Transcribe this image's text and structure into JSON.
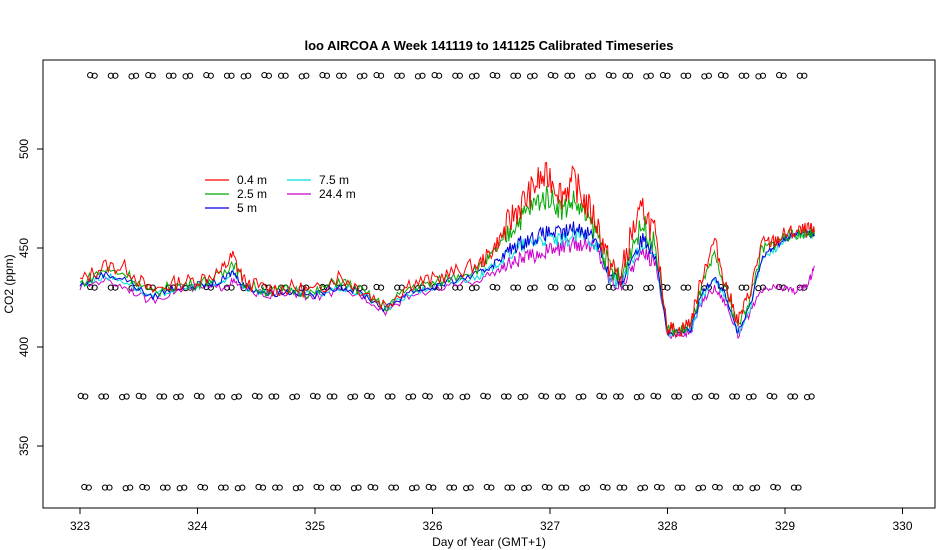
{
  "chart_data": {
    "type": "line",
    "title": "loo AIRCOA A  Week 141119 to 141125  Calibrated Timeseries",
    "xlabel": "Day of Year (GMT+1)",
    "ylabel": "CO2 (ppm)",
    "xlim": [
      323,
      330
    ],
    "ylim": [
      320,
      545
    ],
    "x_ticks": [
      323,
      324,
      325,
      326,
      327,
      328,
      329,
      330
    ],
    "y_ticks": [
      350,
      400,
      450,
      500
    ],
    "grid": false,
    "legend_position": "top-left",
    "series": [
      {
        "name": "0.4 m",
        "color": "#ff0000",
        "points": [
          [
            323.0,
            433
          ],
          [
            323.2,
            441
          ],
          [
            323.4,
            440
          ],
          [
            323.6,
            428
          ],
          [
            323.8,
            432
          ],
          [
            324.0,
            434
          ],
          [
            324.2,
            438
          ],
          [
            324.3,
            446
          ],
          [
            324.4,
            433
          ],
          [
            324.6,
            429
          ],
          [
            324.8,
            430
          ],
          [
            325.0,
            428
          ],
          [
            325.2,
            436
          ],
          [
            325.4,
            429
          ],
          [
            325.6,
            421
          ],
          [
            325.8,
            432
          ],
          [
            326.0,
            434
          ],
          [
            326.2,
            438
          ],
          [
            326.4,
            442
          ],
          [
            326.5,
            448
          ],
          [
            326.6,
            457
          ],
          [
            326.7,
            468
          ],
          [
            326.8,
            475
          ],
          [
            326.9,
            484
          ],
          [
            327.0,
            486
          ],
          [
            327.1,
            477
          ],
          [
            327.2,
            484
          ],
          [
            327.3,
            473
          ],
          [
            327.4,
            463
          ],
          [
            327.5,
            442
          ],
          [
            327.6,
            435
          ],
          [
            327.7,
            458
          ],
          [
            327.8,
            470
          ],
          [
            327.9,
            455
          ],
          [
            328.0,
            410
          ],
          [
            328.1,
            408
          ],
          [
            328.2,
            413
          ],
          [
            328.3,
            437
          ],
          [
            328.4,
            454
          ],
          [
            328.5,
            430
          ],
          [
            328.6,
            413
          ],
          [
            328.7,
            427
          ],
          [
            328.8,
            452
          ],
          [
            328.9,
            453
          ],
          [
            329.0,
            457
          ],
          [
            329.1,
            458
          ],
          [
            329.2,
            459
          ],
          [
            329.25,
            458
          ]
        ]
      },
      {
        "name": "2.5 m",
        "color": "#00aa00",
        "points": [
          [
            323.0,
            432
          ],
          [
            323.2,
            439
          ],
          [
            323.4,
            437
          ],
          [
            323.6,
            427
          ],
          [
            323.8,
            431
          ],
          [
            324.0,
            432
          ],
          [
            324.2,
            436
          ],
          [
            324.3,
            443
          ],
          [
            324.4,
            432
          ],
          [
            324.6,
            428
          ],
          [
            324.8,
            429
          ],
          [
            325.0,
            427
          ],
          [
            325.2,
            434
          ],
          [
            325.4,
            428
          ],
          [
            325.6,
            420
          ],
          [
            325.8,
            430
          ],
          [
            326.0,
            432
          ],
          [
            326.2,
            436
          ],
          [
            326.4,
            440
          ],
          [
            326.5,
            446
          ],
          [
            326.6,
            453
          ],
          [
            326.7,
            462
          ],
          [
            326.8,
            468
          ],
          [
            326.9,
            474
          ],
          [
            327.0,
            476
          ],
          [
            327.1,
            469
          ],
          [
            327.2,
            474
          ],
          [
            327.3,
            466
          ],
          [
            327.4,
            458
          ],
          [
            327.5,
            440
          ],
          [
            327.6,
            434
          ],
          [
            327.7,
            452
          ],
          [
            327.8,
            462
          ],
          [
            327.9,
            450
          ],
          [
            328.0,
            409
          ],
          [
            328.1,
            408
          ],
          [
            328.2,
            411
          ],
          [
            328.3,
            432
          ],
          [
            328.4,
            446
          ],
          [
            328.5,
            428
          ],
          [
            328.6,
            411
          ],
          [
            328.7,
            424
          ],
          [
            328.8,
            449
          ],
          [
            328.9,
            452
          ],
          [
            329.0,
            456
          ],
          [
            329.1,
            457
          ],
          [
            329.2,
            458
          ],
          [
            329.25,
            457
          ]
        ]
      },
      {
        "name": "5 m",
        "color": "#0000dd",
        "points": [
          [
            323.0,
            431
          ],
          [
            323.2,
            437
          ],
          [
            323.4,
            434
          ],
          [
            323.6,
            425
          ],
          [
            323.8,
            430
          ],
          [
            324.0,
            431
          ],
          [
            324.2,
            433
          ],
          [
            324.3,
            438
          ],
          [
            324.4,
            431
          ],
          [
            324.6,
            427
          ],
          [
            324.8,
            428
          ],
          [
            325.0,
            426
          ],
          [
            325.2,
            431
          ],
          [
            325.4,
            427
          ],
          [
            325.6,
            419
          ],
          [
            325.8,
            428
          ],
          [
            326.0,
            430
          ],
          [
            326.2,
            434
          ],
          [
            326.4,
            437
          ],
          [
            326.5,
            441
          ],
          [
            326.6,
            446
          ],
          [
            326.7,
            451
          ],
          [
            326.8,
            454
          ],
          [
            326.9,
            456
          ],
          [
            327.0,
            458
          ],
          [
            327.1,
            457
          ],
          [
            327.2,
            460
          ],
          [
            327.3,
            459
          ],
          [
            327.4,
            454
          ],
          [
            327.5,
            437
          ],
          [
            327.6,
            432
          ],
          [
            327.7,
            446
          ],
          [
            327.8,
            455
          ],
          [
            327.9,
            447
          ],
          [
            328.0,
            407
          ],
          [
            328.1,
            407
          ],
          [
            328.2,
            409
          ],
          [
            328.3,
            428
          ],
          [
            328.4,
            436
          ],
          [
            328.5,
            425
          ],
          [
            328.6,
            407
          ],
          [
            328.7,
            420
          ],
          [
            328.8,
            445
          ],
          [
            328.9,
            450
          ],
          [
            329.0,
            455
          ],
          [
            329.1,
            457
          ],
          [
            329.2,
            458
          ],
          [
            329.25,
            456
          ]
        ]
      },
      {
        "name": "7.5 m",
        "color": "#00dddd",
        "points": [
          [
            323.0,
            431
          ],
          [
            323.2,
            436
          ],
          [
            323.4,
            433
          ],
          [
            323.6,
            425
          ],
          [
            323.8,
            429
          ],
          [
            324.0,
            431
          ],
          [
            324.2,
            432
          ],
          [
            324.3,
            437
          ],
          [
            324.4,
            430
          ],
          [
            324.6,
            427
          ],
          [
            324.8,
            428
          ],
          [
            325.0,
            426
          ],
          [
            325.2,
            430
          ],
          [
            325.4,
            427
          ],
          [
            325.6,
            419
          ],
          [
            325.8,
            427
          ],
          [
            326.0,
            430
          ],
          [
            326.2,
            433
          ],
          [
            326.4,
            436
          ],
          [
            326.5,
            440
          ],
          [
            326.6,
            444
          ],
          [
            326.7,
            449
          ],
          [
            326.8,
            452
          ],
          [
            326.9,
            454
          ],
          [
            327.0,
            455
          ],
          [
            327.1,
            453
          ],
          [
            327.2,
            456
          ],
          [
            327.3,
            456
          ],
          [
            327.4,
            452
          ],
          [
            327.5,
            436
          ],
          [
            327.6,
            432
          ],
          [
            327.7,
            444
          ],
          [
            327.8,
            451
          ],
          [
            327.9,
            445
          ],
          [
            328.0,
            407
          ],
          [
            328.1,
            407
          ],
          [
            328.2,
            409
          ],
          [
            328.3,
            426
          ],
          [
            328.4,
            434
          ],
          [
            328.5,
            424
          ],
          [
            328.6,
            407
          ],
          [
            328.7,
            419
          ],
          [
            328.8,
            444
          ],
          [
            328.9,
            449
          ],
          [
            329.0,
            454
          ],
          [
            329.1,
            456
          ],
          [
            329.2,
            457
          ],
          [
            329.25,
            456
          ]
        ]
      },
      {
        "name": "24.4 m",
        "color": "#cc00cc",
        "points": [
          [
            323.0,
            430
          ],
          [
            323.2,
            434
          ],
          [
            323.4,
            430
          ],
          [
            323.6,
            423
          ],
          [
            323.8,
            428
          ],
          [
            324.0,
            430
          ],
          [
            324.2,
            430
          ],
          [
            324.3,
            433
          ],
          [
            324.4,
            429
          ],
          [
            324.6,
            426
          ],
          [
            324.8,
            427
          ],
          [
            325.0,
            425
          ],
          [
            325.2,
            428
          ],
          [
            325.4,
            426
          ],
          [
            325.6,
            418
          ],
          [
            325.8,
            426
          ],
          [
            326.0,
            429
          ],
          [
            326.2,
            431
          ],
          [
            326.4,
            434
          ],
          [
            326.5,
            437
          ],
          [
            326.6,
            440
          ],
          [
            326.7,
            443
          ],
          [
            326.8,
            445
          ],
          [
            326.9,
            447
          ],
          [
            327.0,
            449
          ],
          [
            327.1,
            450
          ],
          [
            327.2,
            452
          ],
          [
            327.3,
            452
          ],
          [
            327.4,
            450
          ],
          [
            327.5,
            435
          ],
          [
            327.6,
            431
          ],
          [
            327.7,
            441
          ],
          [
            327.8,
            447
          ],
          [
            327.9,
            443
          ],
          [
            328.0,
            406
          ],
          [
            328.1,
            406
          ],
          [
            328.2,
            408
          ],
          [
            328.3,
            424
          ],
          [
            328.4,
            430
          ],
          [
            328.5,
            422
          ],
          [
            328.6,
            406
          ],
          [
            328.7,
            417
          ],
          [
            328.8,
            428
          ],
          [
            328.9,
            430
          ],
          [
            329.0,
            430
          ],
          [
            329.1,
            428
          ],
          [
            329.2,
            432
          ],
          [
            329.25,
            441
          ]
        ]
      }
    ],
    "marker_rows": [
      {
        "label": "circles",
        "y": 537,
        "x_start": 323.1,
        "x_end": 329.15,
        "step": 0.1625
      },
      {
        "label": "circles",
        "y": 430,
        "x_start": 323.1,
        "x_end": 329.15,
        "step": 0.1625
      },
      {
        "label": "circles",
        "y": 375,
        "x_start": 323.02,
        "x_end": 329.25,
        "step": 0.1625
      },
      {
        "label": "circles",
        "y": 329,
        "x_start": 323.05,
        "x_end": 329.15,
        "step": 0.1625
      }
    ]
  }
}
